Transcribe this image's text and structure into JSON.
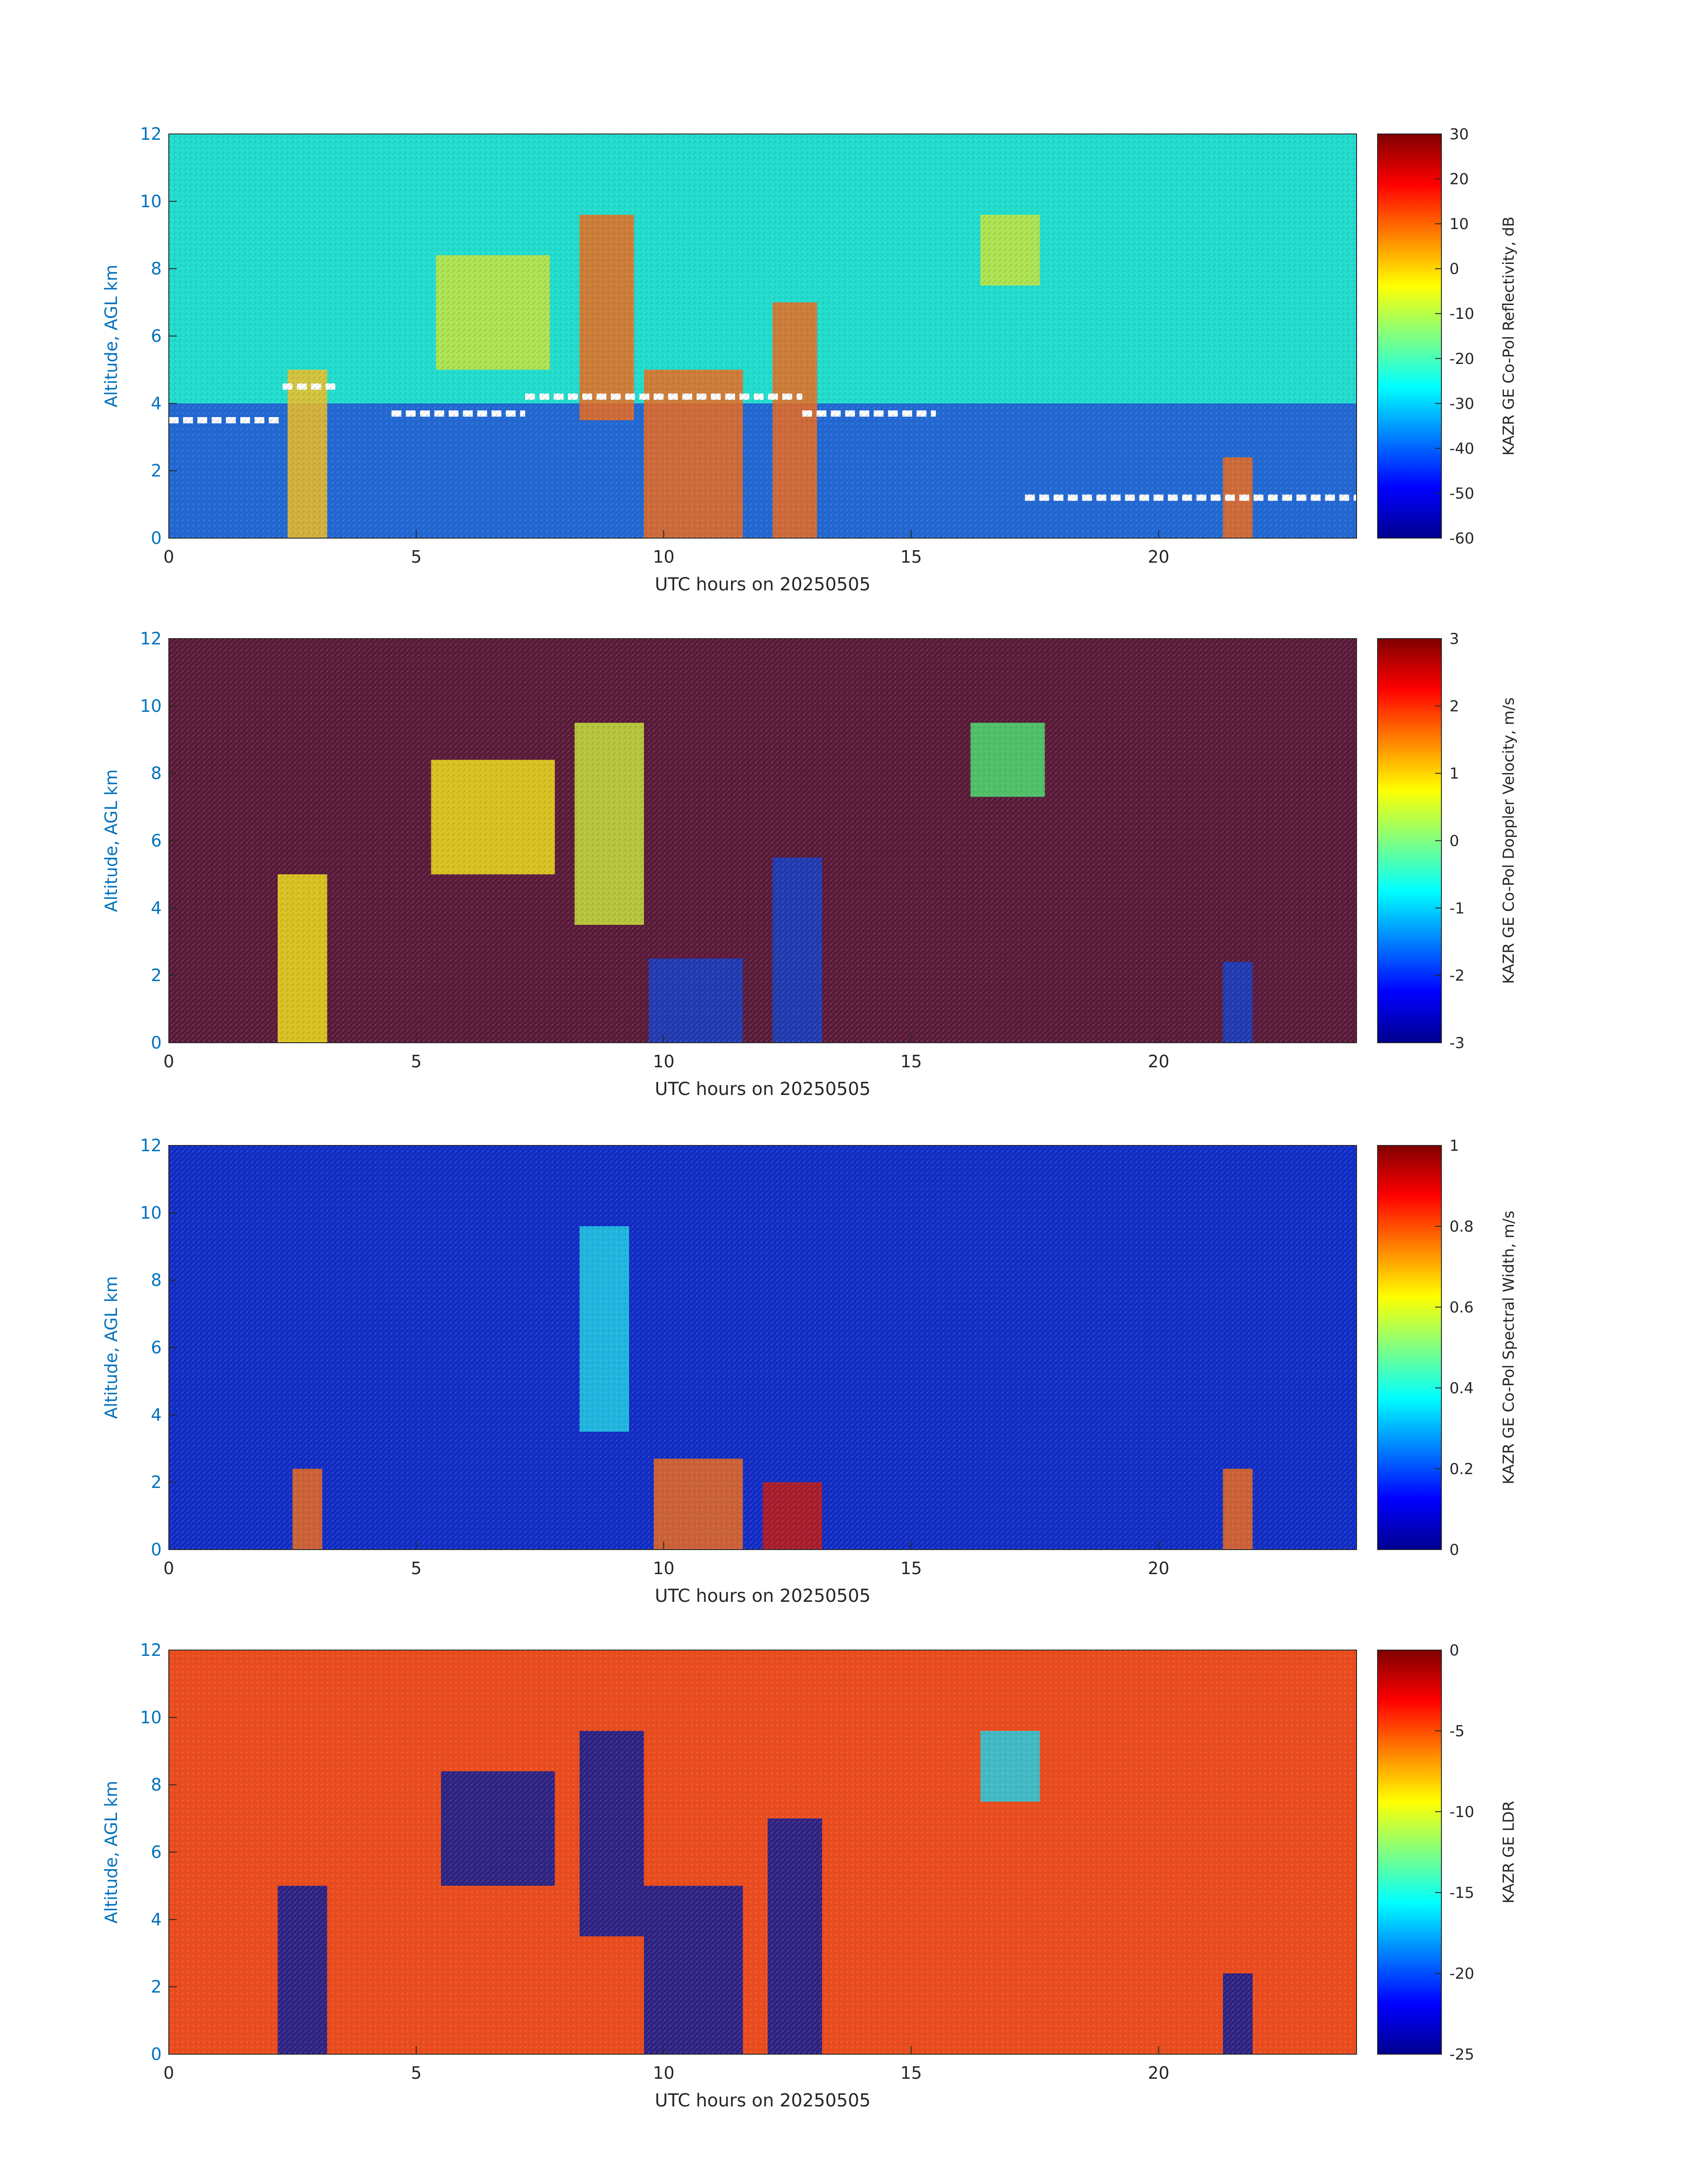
{
  "charts": [
    {
      "type": "heatmap",
      "title": "",
      "xlabel": "UTC hours on 20250505",
      "ylabel": "Altitude, AGL km",
      "xlim": [
        0,
        24
      ],
      "ylim": [
        0,
        12
      ],
      "xticks": [
        0,
        5,
        10,
        15,
        20
      ],
      "yticks": [
        0,
        2,
        4,
        6,
        8,
        10,
        12
      ],
      "colorbar": {
        "label": "KAZR GE Co-Pol Reflectivity, dB",
        "range": [
          -60,
          30
        ],
        "ticks": [
          30,
          20,
          10,
          0,
          -10,
          -20,
          -30,
          -40,
          -50,
          -60
        ],
        "colormap": "jet"
      },
      "background_color": "#1de0d0",
      "low_level_color": "#1f3fd8",
      "features": [
        {
          "x_range": [
            2.4,
            3.2
          ],
          "y_range": [
            0,
            5.0
          ],
          "level": "yellow-orange"
        },
        {
          "x_range": [
            5.4,
            7.7
          ],
          "y_range": [
            5.0,
            8.4
          ],
          "level": "yellow-green"
        },
        {
          "x_range": [
            8.3,
            9.4
          ],
          "y_range": [
            3.5,
            9.6
          ],
          "level": "orange-red"
        },
        {
          "x_range": [
            9.6,
            11.6
          ],
          "y_range": [
            0,
            5.0
          ],
          "level": "orange-red"
        },
        {
          "x_range": [
            12.2,
            13.1
          ],
          "y_range": [
            0,
            7.0
          ],
          "level": "orange-red"
        },
        {
          "x_range": [
            16.4,
            17.6
          ],
          "y_range": [
            7.5,
            9.6
          ],
          "level": "yellow-green"
        },
        {
          "x_range": [
            21.3,
            21.9
          ],
          "y_range": [
            0,
            2.4
          ],
          "level": "orange-red"
        }
      ],
      "white_markers": [
        {
          "x_range": [
            0,
            2.3
          ],
          "y": 3.5
        },
        {
          "x_range": [
            2.3,
            3.4
          ],
          "y": 4.5
        },
        {
          "x_range": [
            4.5,
            7.2
          ],
          "y": 3.7
        },
        {
          "x_range": [
            7.2,
            12.8
          ],
          "y": 4.2
        },
        {
          "x_range": [
            12.8,
            15.5
          ],
          "y": 3.7
        },
        {
          "x_range": [
            17.3,
            24
          ],
          "y": 1.2
        }
      ]
    },
    {
      "type": "heatmap",
      "title": "",
      "xlabel": "UTC hours on 20250505",
      "ylabel": "Altitude, AGL km",
      "xlim": [
        0,
        24
      ],
      "ylim": [
        0,
        12
      ],
      "xticks": [
        0,
        5,
        10,
        15,
        20
      ],
      "yticks": [
        0,
        2,
        4,
        6,
        8,
        10,
        12
      ],
      "colorbar": {
        "label": "KAZR GE Co-Pol Doppler Velocity, m/s",
        "range": [
          -3,
          3
        ],
        "ticks": [
          3,
          2,
          1,
          0,
          -1,
          -2,
          -3
        ],
        "colormap": "jet"
      },
      "background_color": "#5a1838",
      "features": [
        {
          "x_range": [
            2.2,
            3.2
          ],
          "y_range": [
            0,
            5.0
          ],
          "level": "yellow"
        },
        {
          "x_range": [
            5.3,
            7.8
          ],
          "y_range": [
            5.0,
            8.4
          ],
          "level": "yellow"
        },
        {
          "x_range": [
            8.2,
            9.6
          ],
          "y_range": [
            3.5,
            9.5
          ],
          "level": "yellow-green"
        },
        {
          "x_range": [
            9.7,
            11.6
          ],
          "y_range": [
            0,
            2.5
          ],
          "level": "blue"
        },
        {
          "x_range": [
            12.2,
            13.2
          ],
          "y_range": [
            0,
            5.5
          ],
          "level": "blue"
        },
        {
          "x_range": [
            16.2,
            17.7
          ],
          "y_range": [
            7.3,
            9.5
          ],
          "level": "green"
        },
        {
          "x_range": [
            21.3,
            21.9
          ],
          "y_range": [
            0,
            2.4
          ],
          "level": "blue"
        }
      ]
    },
    {
      "type": "heatmap",
      "title": "",
      "xlabel": "UTC hours on 20250505",
      "ylabel": "Altitude, AGL km",
      "xlim": [
        0,
        24
      ],
      "ylim": [
        0,
        12
      ],
      "xticks": [
        0,
        5,
        10,
        15,
        20
      ],
      "yticks": [
        0,
        2,
        4,
        6,
        8,
        10,
        12
      ],
      "colorbar": {
        "label": "KAZR GE Co-Pol Spectral Width, m/s",
        "range": [
          0,
          1
        ],
        "ticks": [
          1,
          0.8,
          0.6,
          0.4,
          0.2,
          0
        ],
        "colormap": "jet"
      },
      "background_color": "#0f2bc8",
      "features": [
        {
          "x_range": [
            2.5,
            3.1
          ],
          "y_range": [
            0,
            2.4
          ],
          "level": "orange-red"
        },
        {
          "x_range": [
            8.3,
            9.3
          ],
          "y_range": [
            3.5,
            9.6
          ],
          "level": "cyan"
        },
        {
          "x_range": [
            9.8,
            11.6
          ],
          "y_range": [
            0,
            2.7
          ],
          "level": "orange-red"
        },
        {
          "x_range": [
            12.0,
            13.2
          ],
          "y_range": [
            0,
            2.0
          ],
          "level": "red"
        },
        {
          "x_range": [
            21.3,
            21.9
          ],
          "y_range": [
            0,
            2.4
          ],
          "level": "orange-red"
        }
      ]
    },
    {
      "type": "heatmap",
      "title": "",
      "xlabel": "UTC hours on 20250505",
      "ylabel": "Altitude, AGL km",
      "xlim": [
        0,
        24
      ],
      "ylim": [
        0,
        12
      ],
      "xticks": [
        0,
        5,
        10,
        15,
        20
      ],
      "yticks": [
        0,
        2,
        4,
        6,
        8,
        10,
        12
      ],
      "colorbar": {
        "label": "KAZR GE LDR",
        "range": [
          -25,
          0
        ],
        "ticks": [
          0,
          -5,
          -10,
          -15,
          -20,
          -25
        ],
        "colormap": "jet"
      },
      "background_color": "#ef4a1a",
      "features": [
        {
          "x_range": [
            2.2,
            3.2
          ],
          "y_range": [
            0,
            5.0
          ],
          "level": "dark-blue"
        },
        {
          "x_range": [
            5.5,
            7.8
          ],
          "y_range": [
            5.0,
            8.4
          ],
          "level": "dark-blue"
        },
        {
          "x_range": [
            8.3,
            9.6
          ],
          "y_range": [
            3.5,
            9.6
          ],
          "level": "dark-blue"
        },
        {
          "x_range": [
            9.6,
            11.6
          ],
          "y_range": [
            0,
            5.0
          ],
          "level": "dark-blue"
        },
        {
          "x_range": [
            12.1,
            13.2
          ],
          "y_range": [
            0,
            7.0
          ],
          "level": "dark-blue"
        },
        {
          "x_range": [
            16.4,
            17.6
          ],
          "y_range": [
            7.5,
            9.6
          ],
          "level": "cyan"
        },
        {
          "x_range": [
            21.3,
            21.9
          ],
          "y_range": [
            0,
            2.4
          ],
          "level": "dark-blue"
        }
      ]
    }
  ]
}
